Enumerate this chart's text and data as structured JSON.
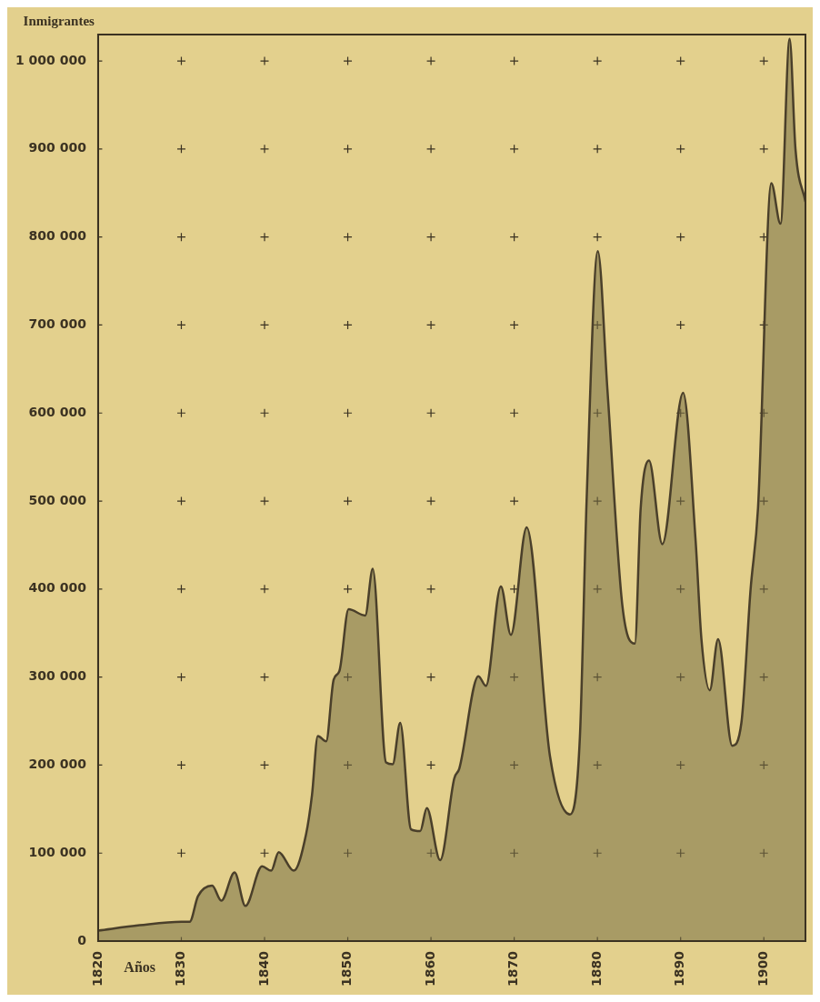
{
  "chart_data": {
    "type": "area",
    "xlabel": "Años",
    "ylabel": "Inmigrantes",
    "xlim": [
      1820,
      1905
    ],
    "ylim": [
      0,
      1030000
    ],
    "xticks": [
      1820,
      1830,
      1840,
      1850,
      1860,
      1870,
      1880,
      1890,
      1900
    ],
    "yticks": [
      {
        "value": 0,
        "label": "0"
      },
      {
        "value": 100000,
        "label": "100 000"
      },
      {
        "value": 200000,
        "label": "200 000"
      },
      {
        "value": 300000,
        "label": "300 000"
      },
      {
        "value": 400000,
        "label": "400 000"
      },
      {
        "value": 500000,
        "label": "500 000"
      },
      {
        "value": 600000,
        "label": "600 000"
      },
      {
        "value": 700000,
        "label": "700 000"
      },
      {
        "value": 800000,
        "label": "800 000"
      },
      {
        "value": 900000,
        "label": "900 000"
      },
      {
        "value": 1000000,
        "label": "1 000 000"
      }
    ],
    "grid": true,
    "legend": false,
    "marker": "none",
    "line_style": "solid",
    "series": [
      {
        "color": "#4a3f2a",
        "x": [
          1820,
          1825,
          1830,
          1831,
          1832,
          1833.7,
          1834.8,
          1836.4,
          1837.7,
          1839.7,
          1840.8,
          1841.7,
          1843.5,
          1845,
          1845.7,
          1846.4,
          1847.4,
          1848.3,
          1849,
          1850.1,
          1852.1,
          1853,
          1854.6,
          1855.4,
          1856.3,
          1857.6,
          1858.7,
          1859.5,
          1861.1,
          1862.8,
          1863.4,
          1865.7,
          1866.6,
          1868.4,
          1869.6,
          1871.5,
          1874.3,
          1876.7,
          1877.9,
          1878.7,
          1880.05,
          1881.2,
          1883,
          1884.5,
          1885.2,
          1886.2,
          1887.8,
          1890.3,
          1891.8,
          1892.5,
          1893.5,
          1894.5,
          1896.2,
          1897.3,
          1898.4,
          1899.3,
          1900.9,
          1902,
          1903.1,
          1903.8,
          1905
        ],
        "values": [
          12000,
          18000,
          22000,
          22000,
          51000,
          63000,
          46000,
          78000,
          40000,
          85000,
          80000,
          101000,
          80000,
          122000,
          166000,
          233000,
          227000,
          297000,
          307000,
          377000,
          370000,
          423000,
          203000,
          201000,
          248000,
          127000,
          125000,
          151000,
          92000,
          185000,
          196000,
          301000,
          290000,
          403000,
          348000,
          470000,
          210000,
          144000,
          233000,
          500000,
          784000,
          627000,
          381000,
          338000,
          492000,
          546000,
          451000,
          623000,
          455000,
          343000,
          285000,
          343000,
          222000,
          248000,
          399000,
          492000,
          861000,
          815000,
          1025000,
          900000,
          840000
        ]
      }
    ]
  }
}
